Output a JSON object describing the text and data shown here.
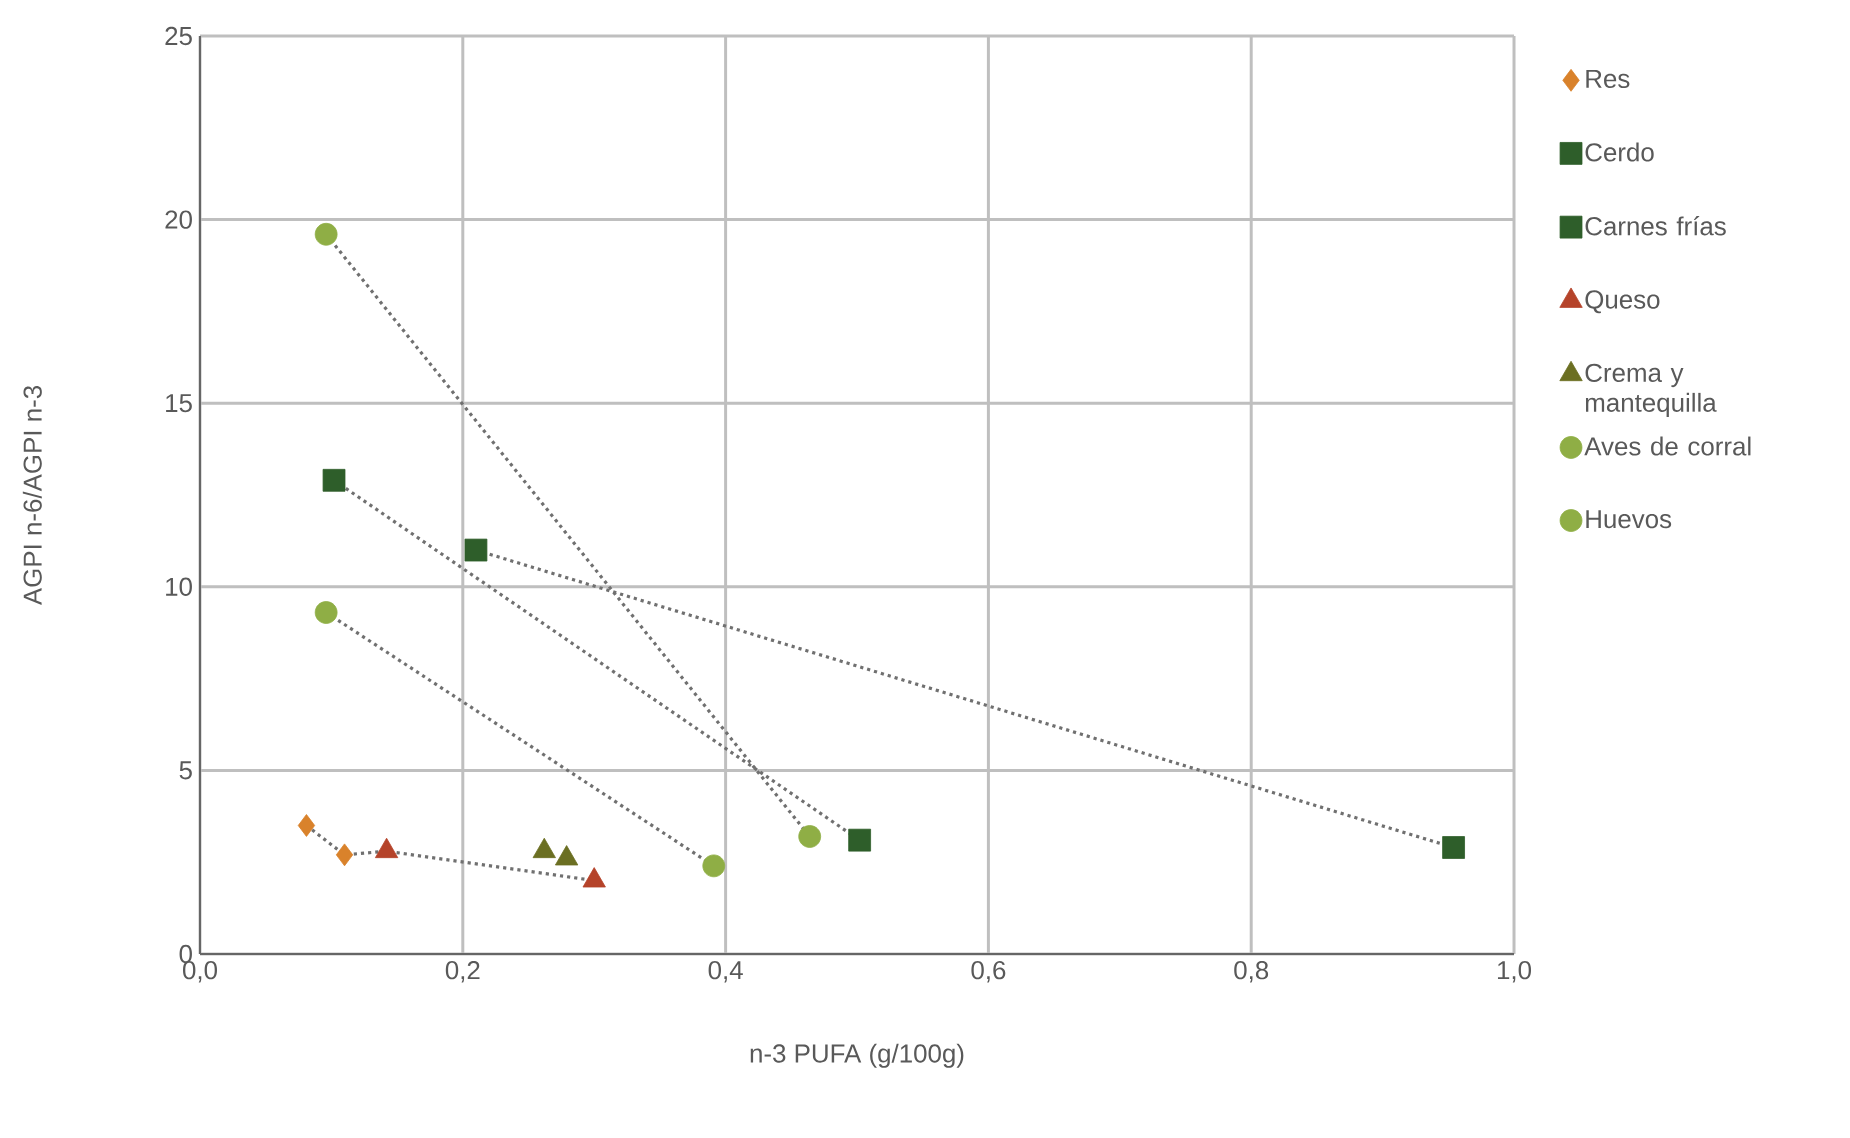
{
  "chart_data": {
    "type": "scatter",
    "xlabel": "n-3 PUFA (g/100g)",
    "ylabel": "AGPI n-6/AGPI n-3",
    "xlim": [
      0,
      1
    ],
    "ylim": [
      0,
      25
    ],
    "xticks": [
      {
        "value": 0,
        "label": "0,0"
      },
      {
        "value": 0.2,
        "label": "0,2"
      },
      {
        "value": 0.4,
        "label": "0,4"
      },
      {
        "value": 0.6,
        "label": "0,6"
      },
      {
        "value": 0.8,
        "label": "0,8"
      },
      {
        "value": 1,
        "label": "1,0"
      }
    ],
    "yticks": [
      0,
      5,
      10,
      15,
      20,
      25
    ],
    "grid": true,
    "legend": "right",
    "series": [
      {
        "name": "Res",
        "color": "#d9822b",
        "marker": "diamond",
        "x": [
          0.081,
          0.11
        ],
        "values": [
          3.5,
          2.7
        ]
      },
      {
        "name": "Cerdo",
        "color": "#2e5e2a",
        "marker": "square",
        "x": [
          0.102,
          0.502
        ],
        "values": [
          12.9,
          3.1
        ]
      },
      {
        "name": "Carnes frías",
        "color": "#2e5e2a",
        "marker": "square",
        "x": [
          0.21,
          0.954
        ],
        "values": [
          11.0,
          2.9
        ]
      },
      {
        "name": "Queso",
        "color": "#b5432a",
        "marker": "triangle",
        "x": [
          0.142,
          0.3
        ],
        "values": [
          2.8,
          2.0
        ]
      },
      {
        "name": "Crema y mantequilla",
        "color": "#6b6f22",
        "marker": "triangle",
        "x": [
          0.262,
          0.279
        ],
        "values": [
          2.8,
          2.6
        ]
      },
      {
        "name": "Aves de corral",
        "color": "#8fae45",
        "marker": "circle",
        "x": [
          0.096,
          0.391
        ],
        "values": [
          9.3,
          2.4
        ]
      },
      {
        "name": "Huevos",
        "color": "#8fae45",
        "marker": "circle",
        "x": [
          0.096,
          0.464
        ],
        "values": [
          19.6,
          3.2
        ]
      },
      {
        "type": "line",
        "color": "#707070",
        "line_style": "dotted",
        "marker": "none",
        "x": [
          0.096,
          0.464
        ],
        "values": [
          19.6,
          3.2
        ]
      },
      {
        "type": "line",
        "color": "#707070",
        "line_style": "dotted",
        "marker": "none",
        "x": [
          0.102,
          0.502
        ],
        "values": [
          12.9,
          3.1
        ]
      },
      {
        "type": "line",
        "color": "#707070",
        "line_style": "dotted",
        "marker": "none",
        "x": [
          0.21,
          0.954
        ],
        "values": [
          11.0,
          2.9
        ]
      },
      {
        "type": "line",
        "color": "#707070",
        "line_style": "dotted",
        "marker": "none",
        "x": [
          0.096,
          0.391
        ],
        "values": [
          9.3,
          2.4
        ]
      },
      {
        "type": "line",
        "color": "#707070",
        "line_style": "dotted",
        "marker": "none",
        "x": [
          0.081,
          0.11,
          0.142,
          0.3
        ],
        "values": [
          3.5,
          2.7,
          2.8,
          2.0
        ]
      }
    ]
  }
}
